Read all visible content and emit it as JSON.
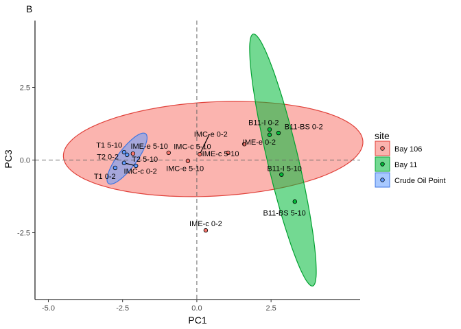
{
  "chart_data": {
    "type": "scatter",
    "panel_tag": "B",
    "xlabel": "PC1",
    "ylabel": "PC3",
    "xlim": [
      -5.45,
      5.5
    ],
    "ylim": [
      -4.8,
      4.8
    ],
    "x_ticks": [
      {
        "value": -5,
        "label": "-5.0"
      },
      {
        "value": -2.5,
        "label": "-2.5"
      },
      {
        "value": 0,
        "label": "0.0"
      },
      {
        "value": 2.5,
        "label": "2.5"
      }
    ],
    "y_ticks": [
      {
        "value": 2.5,
        "label": "2.5"
      },
      {
        "value": 0,
        "label": "0.0"
      },
      {
        "value": -2.5,
        "label": "-2.5"
      }
    ],
    "grid": false,
    "reference_lines": {
      "x": 0,
      "y": 0,
      "style": "dashed"
    },
    "legend": {
      "title": "site",
      "position": "right",
      "items": [
        {
          "label": "Bay 106",
          "fill": "#F8766D",
          "stroke": "#E0413A"
        },
        {
          "label": "Bay 11",
          "fill": "#00BA38",
          "stroke": "#00A030"
        },
        {
          "label": "Crude Oil Point",
          "fill": "#619CFF",
          "stroke": "#3D74E0"
        }
      ]
    },
    "ellipses": [
      {
        "site": "Bay 106",
        "cx": 0.55,
        "cy": 0.38,
        "a": 5.05,
        "b": 1.62,
        "angle_deg": 3
      },
      {
        "site": "Bay 11",
        "cx": 2.9,
        "cy": 0.0,
        "a": 4.45,
        "b": 0.52,
        "angle_deg": -77
      },
      {
        "site": "Crude Oil Point",
        "cx": -2.35,
        "cy": 0.05,
        "a": 1.06,
        "b": 0.32,
        "angle_deg": 54
      }
    ],
    "points": [
      {
        "label": "IMC-e 0-2",
        "site": "Bay 106",
        "x": 0.1,
        "y": 0.2,
        "label_x": 0.47,
        "label_y": 0.9
      },
      {
        "label": "IMC-c 5-10",
        "site": "Bay 106",
        "x": -0.95,
        "y": 0.25,
        "label_x": -0.15,
        "label_y": 0.47
      },
      {
        "label": "IMC-e 5-10",
        "site": "Bay 106",
        "x": -0.3,
        "y": -0.03,
        "label_x": -0.4,
        "label_y": -0.28
      },
      {
        "label": "IME-c 5-10",
        "site": "Bay 106",
        "x": 1.05,
        "y": 0.25,
        "label_x": 0.8,
        "label_y": 0.22
      },
      {
        "label": "IME-e 0-2",
        "site": "Bay 106",
        "x": 1.6,
        "y": 0.55,
        "label_x": 2.1,
        "label_y": 0.62
      },
      {
        "label": "IME-c 0-2",
        "site": "Bay 106",
        "x": 0.3,
        "y": -2.42,
        "label_x": 0.3,
        "label_y": -2.18
      },
      {
        "label": "IME-e 5-10",
        "site": "Bay 106",
        "x": -2.15,
        "y": 0.22,
        "label_x": -1.6,
        "label_y": 0.48
      },
      {
        "label": "T1 5-10",
        "site": "Crude Oil Point",
        "x": -2.45,
        "y": 0.27,
        "label_x": -2.95,
        "label_y": 0.52
      },
      {
        "label": "T2 0-2",
        "site": "Crude Oil Point",
        "x": -2.35,
        "y": 0.18,
        "label_x": -3.0,
        "label_y": 0.12
      },
      {
        "label": "T2 5-10",
        "site": "Crude Oil Point",
        "x": -2.45,
        "y": -0.1,
        "label_x": -1.75,
        "label_y": 0.03
      },
      {
        "label": "IMC-c 0-2",
        "site": "Crude Oil Point",
        "x": -2.05,
        "y": -0.2,
        "label_x": -1.9,
        "label_y": -0.38
      },
      {
        "label": "T1 0-2",
        "site": "Crude Oil Point",
        "x": -2.75,
        "y": -0.27,
        "label_x": -3.1,
        "label_y": -0.55
      },
      {
        "label": "B11-I 0-2",
        "site": "Bay 11",
        "x": 2.45,
        "y": 1.05,
        "label_x": 2.25,
        "label_y": 1.3
      },
      {
        "label": "B11-BS 0-2",
        "site": "Bay 11",
        "x": 2.45,
        "y": 0.87,
        "label_x": 3.6,
        "label_y": 1.15
      },
      {
        "label": "B11-BS 0-2 2",
        "site": "Bay 11",
        "x": 2.75,
        "y": 0.93,
        "label_x": null,
        "label_y": null
      },
      {
        "label": "B11-I 5-10",
        "site": "Bay 11",
        "x": 2.85,
        "y": -0.5,
        "label_x": 2.95,
        "label_y": -0.28
      },
      {
        "label": "B11-BS 5-10",
        "site": "Bay 11",
        "x": 3.3,
        "y": -1.43,
        "label_x": 2.95,
        "label_y": -1.82
      }
    ],
    "connectors": [
      {
        "from_label": "IMC-e 0-2",
        "x1": 0.1,
        "y1": 0.2,
        "x2": 0.42,
        "y2": 0.88
      },
      {
        "from_label": "T2 5-10",
        "site_point": "Crude Oil Point",
        "x1": -2.45,
        "y1": -0.1,
        "x2": -2.05,
        "y2": -0.2
      }
    ]
  }
}
